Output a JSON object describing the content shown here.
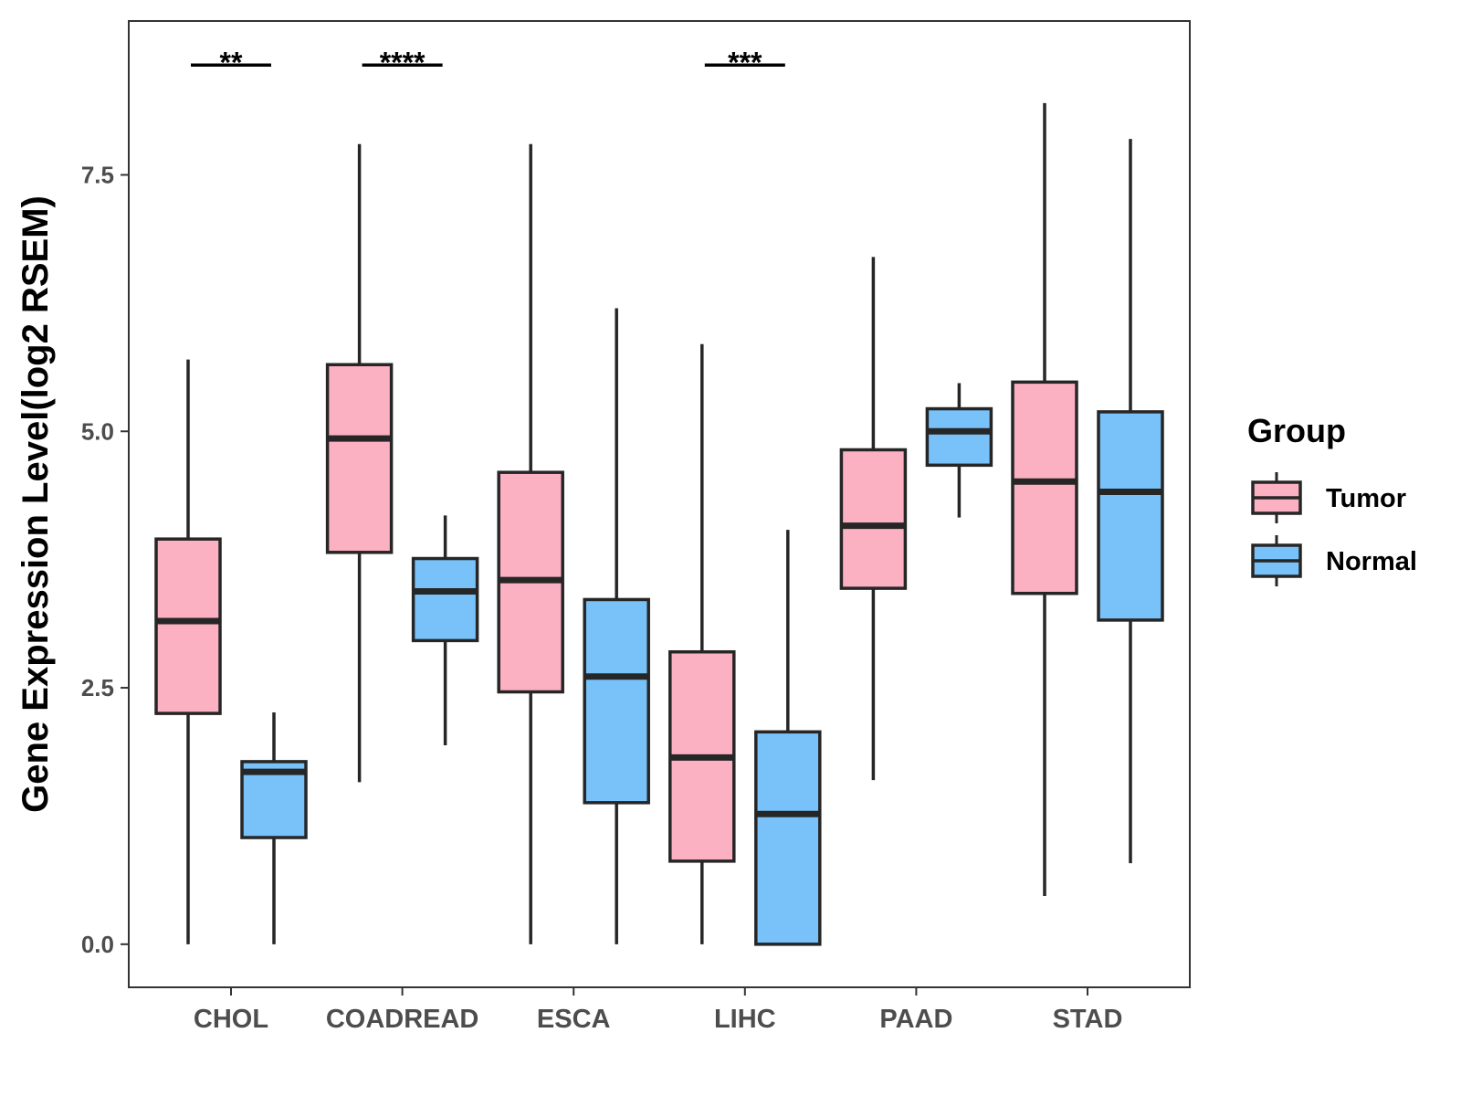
{
  "chart_data": {
    "type": "boxplot",
    "title": "",
    "xlabel": "",
    "ylabel": "Gene Expression Level(log2 RSEM)",
    "ylim": [
      -0.42,
      9.0
    ],
    "yticks": [
      0.0,
      2.5,
      5.0,
      7.5
    ],
    "ytick_labels": [
      "0.0",
      "2.5",
      "5.0",
      "7.5"
    ],
    "categories": [
      "CHOL",
      "COADREAD",
      "ESCA",
      "LIHC",
      "PAAD",
      "STAD"
    ],
    "legend": {
      "title": "Group",
      "position": "right",
      "entries": [
        "Tumor",
        "Normal"
      ]
    },
    "series": [
      {
        "name": "Tumor",
        "color": "#FBB1C2",
        "boxes": [
          {
            "min": 0.0,
            "q1": 2.25,
            "median": 3.15,
            "q3": 3.95,
            "max": 5.7
          },
          {
            "min": 1.58,
            "q1": 3.82,
            "median": 4.93,
            "q3": 5.65,
            "max": 7.8
          },
          {
            "min": 0.0,
            "q1": 2.46,
            "median": 3.55,
            "q3": 4.6,
            "max": 7.8
          },
          {
            "min": 0.0,
            "q1": 0.81,
            "median": 1.82,
            "q3": 2.85,
            "max": 5.85
          },
          {
            "min": 1.6,
            "q1": 3.47,
            "median": 4.08,
            "q3": 4.82,
            "max": 6.7
          },
          {
            "min": 0.47,
            "q1": 3.42,
            "median": 4.51,
            "q3": 5.48,
            "max": 8.2
          }
        ]
      },
      {
        "name": "Normal",
        "color": "#78C2F9",
        "boxes": [
          {
            "min": 0.0,
            "q1": 1.04,
            "median": 1.68,
            "q3": 1.78,
            "max": 2.26
          },
          {
            "min": 1.94,
            "q1": 2.96,
            "median": 3.44,
            "q3": 3.76,
            "max": 4.18
          },
          {
            "min": 0.0,
            "q1": 1.38,
            "median": 2.61,
            "q3": 3.36,
            "max": 6.2
          },
          {
            "min": 0.0,
            "q1": 0.0,
            "median": 1.27,
            "q3": 2.07,
            "max": 4.04
          },
          {
            "min": 4.16,
            "q1": 4.67,
            "median": 5.0,
            "q3": 5.22,
            "max": 5.47
          },
          {
            "min": 0.79,
            "q1": 3.16,
            "median": 4.41,
            "q3": 5.19,
            "max": 7.85
          }
        ]
      }
    ],
    "significance": [
      {
        "category": "CHOL",
        "label": "**",
        "y": 8.57
      },
      {
        "category": "COADREAD",
        "label": "****",
        "y": 8.57
      },
      {
        "category": "LIHC",
        "label": "***",
        "y": 8.57
      }
    ]
  }
}
